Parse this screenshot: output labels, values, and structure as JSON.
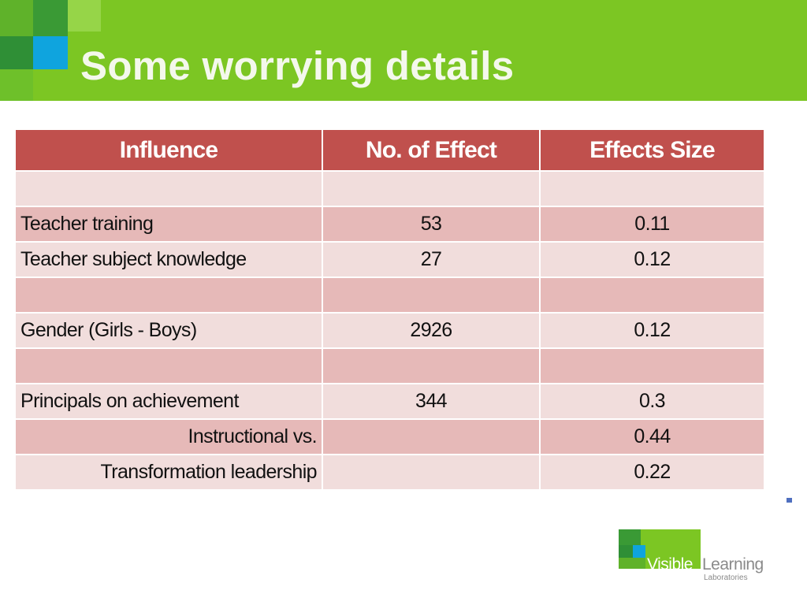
{
  "slide": {
    "title": "Some worrying details"
  },
  "table": {
    "headers": [
      "Influence",
      "No. of Effect",
      "Effects Size"
    ],
    "rows": [
      {
        "influence": "",
        "effects": "",
        "size": ""
      },
      {
        "influence": "Teacher training",
        "effects": "53",
        "size": "0.11"
      },
      {
        "influence": "Teacher subject knowledge",
        "effects": "27",
        "size": "0.12"
      },
      {
        "influence": "",
        "effects": "",
        "size": ""
      },
      {
        "influence": "Gender (Girls - Boys)",
        "effects": "2926",
        "size": "0.12"
      },
      {
        "influence": "",
        "effects": "",
        "size": ""
      },
      {
        "influence": "Principals on achievement",
        "effects": "344",
        "size": "0.3"
      },
      {
        "influence": "Instructional vs.",
        "effects": "",
        "size": "0.44"
      },
      {
        "influence": "Transformation leadership",
        "effects": "",
        "size": "0.22"
      }
    ]
  },
  "logo": {
    "word1": "Visible",
    "word2": "Learning",
    "word3": "Laboratories"
  },
  "colors": {
    "header_green": "#7cc623",
    "table_header": "#c0504d",
    "row_dark": "#e6b9b8",
    "row_light": "#f1dddc"
  }
}
